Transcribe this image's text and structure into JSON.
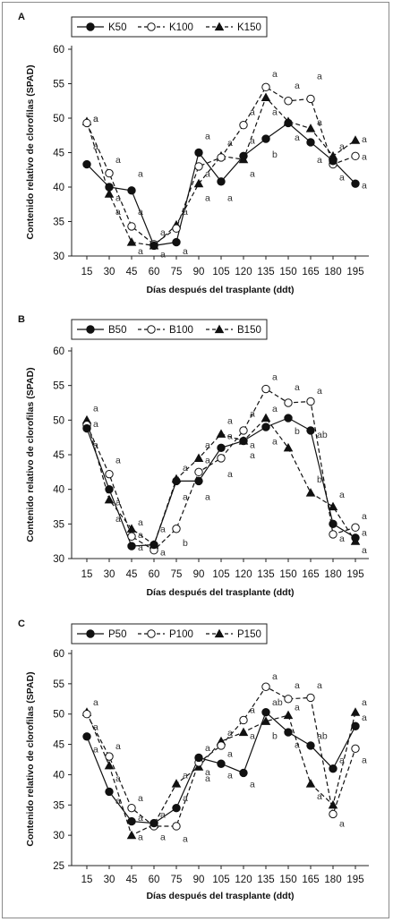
{
  "charts": [
    {
      "panel": "A",
      "type": "line",
      "x": [
        15,
        30,
        45,
        60,
        75,
        90,
        105,
        120,
        135,
        150,
        165,
        180,
        195
      ],
      "ylim": [
        30,
        60
      ],
      "yticks": [
        30,
        35,
        40,
        45,
        50,
        55,
        60
      ],
      "xlabel": "Días después del trasplante (ddt)",
      "ylabel": "Contenido relativo de clorofilas (SPAD)",
      "series": [
        {
          "name": "K50",
          "marker": "circle",
          "dash": "solid",
          "values": [
            43.3,
            40.0,
            39.5,
            31.5,
            32.0,
            45.0,
            40.8,
            44.5,
            47.0,
            49.3,
            46.5,
            43.8,
            40.5
          ]
        },
        {
          "name": "K100",
          "marker": "circle-open",
          "dash": "dashed",
          "values": [
            49.3,
            42.0,
            34.3,
            31.7,
            34.0,
            43.0,
            44.3,
            49.0,
            54.5,
            52.5,
            52.8,
            43.3,
            44.5
          ]
        },
        {
          "name": "K150",
          "marker": "triangle",
          "dash": "dashed",
          "values": [
            49.5,
            39.0,
            32.0,
            31.5,
            34.5,
            40.5,
            44.5,
            44.0,
            53.0,
            49.5,
            48.5,
            44.5,
            46.8
          ]
        }
      ],
      "annotations": [
        {
          "x": 15,
          "y": 50.0,
          "text": "a"
        },
        {
          "x": 15,
          "y": 50.0,
          "text": "a"
        },
        {
          "x": 15,
          "y": 46.0,
          "text": "a"
        },
        {
          "x": 30,
          "y": 44.0,
          "text": "a"
        },
        {
          "x": 30,
          "y": 38.5,
          "text": "a"
        },
        {
          "x": 30,
          "y": 36.5,
          "text": "a"
        },
        {
          "x": 45,
          "y": 42.0,
          "text": "a"
        },
        {
          "x": 45,
          "y": 36.5,
          "text": "a"
        },
        {
          "x": 45,
          "y": 30.8,
          "text": "a"
        },
        {
          "x": 60,
          "y": 33.5,
          "text": "a"
        },
        {
          "x": 60,
          "y": 30.3,
          "text": "a"
        },
        {
          "x": 75,
          "y": 36.5,
          "text": "a"
        },
        {
          "x": 75,
          "y": 30.8,
          "text": "a"
        },
        {
          "x": 90,
          "y": 47.5,
          "text": "a"
        },
        {
          "x": 90,
          "y": 42.0,
          "text": "a"
        },
        {
          "x": 90,
          "y": 38.5,
          "text": "a"
        },
        {
          "x": 105,
          "y": 46.5,
          "text": "a"
        },
        {
          "x": 105,
          "y": 38.5,
          "text": "a"
        },
        {
          "x": 120,
          "y": 51.0,
          "text": "a"
        },
        {
          "x": 120,
          "y": 46.8,
          "text": "a"
        },
        {
          "x": 120,
          "y": 42.0,
          "text": "a"
        },
        {
          "x": 135,
          "y": 56.5,
          "text": "a"
        },
        {
          "x": 135,
          "y": 51.0,
          "text": "a"
        },
        {
          "x": 135,
          "y": 44.8,
          "text": "b"
        },
        {
          "x": 150,
          "y": 54.8,
          "text": "a"
        },
        {
          "x": 150,
          "y": 47.3,
          "text": "a"
        },
        {
          "x": 165,
          "y": 56.2,
          "text": "a"
        },
        {
          "x": 165,
          "y": 49.5,
          "text": "a"
        },
        {
          "x": 165,
          "y": 44.0,
          "text": "a"
        },
        {
          "x": 180,
          "y": 46.0,
          "text": "a"
        },
        {
          "x": 180,
          "y": 41.5,
          "text": "a"
        },
        {
          "x": 195,
          "y": 47.0,
          "text": "a"
        },
        {
          "x": 195,
          "y": 44.5,
          "text": "a"
        },
        {
          "x": 195,
          "y": 40.3,
          "text": "a"
        }
      ]
    },
    {
      "panel": "B",
      "type": "line",
      "x": [
        15,
        30,
        45,
        60,
        75,
        90,
        105,
        120,
        135,
        150,
        165,
        180,
        195
      ],
      "ylim": [
        30,
        60
      ],
      "yticks": [
        30,
        35,
        40,
        45,
        50,
        55,
        60
      ],
      "xlabel": "Días después del trasplante (ddt)",
      "ylabel": "Contenido relativo de clorofilas (SPAD)",
      "series": [
        {
          "name": "B50",
          "marker": "circle",
          "dash": "solid",
          "values": [
            48.8,
            40.0,
            31.8,
            32.0,
            41.2,
            41.2,
            46.0,
            47.0,
            49.0,
            50.3,
            48.5,
            35.0,
            33.0
          ]
        },
        {
          "name": "B100",
          "marker": "circle-open",
          "dash": "dashed",
          "values": [
            49.3,
            42.2,
            33.2,
            31.2,
            34.3,
            42.5,
            44.5,
            48.5,
            54.5,
            52.5,
            52.7,
            33.5,
            34.5
          ]
        },
        {
          "name": "B150",
          "marker": "triangle",
          "dash": "dashed",
          "values": [
            50.0,
            38.5,
            34.3,
            32.0,
            41.5,
            44.5,
            48.0,
            47.0,
            50.3,
            46.0,
            39.5,
            37.5,
            32.5
          ]
        }
      ],
      "annotations": [
        {
          "x": 15,
          "y": 51.8,
          "text": "a"
        },
        {
          "x": 15,
          "y": 49.5,
          "text": "a"
        },
        {
          "x": 15,
          "y": 46.5,
          "text": "a"
        },
        {
          "x": 30,
          "y": 44.3,
          "text": "a"
        },
        {
          "x": 30,
          "y": 38.2,
          "text": "a"
        },
        {
          "x": 30,
          "y": 35.8,
          "text": "a"
        },
        {
          "x": 45,
          "y": 35.3,
          "text": "a"
        },
        {
          "x": 45,
          "y": 33.5,
          "text": "a"
        },
        {
          "x": 45,
          "y": 31.7,
          "text": "a"
        },
        {
          "x": 60,
          "y": 34.3,
          "text": "a"
        },
        {
          "x": 60,
          "y": 31.0,
          "text": "a"
        },
        {
          "x": 75,
          "y": 43.2,
          "text": "a"
        },
        {
          "x": 75,
          "y": 39.0,
          "text": "a"
        },
        {
          "x": 75,
          "y": 32.3,
          "text": "b"
        },
        {
          "x": 90,
          "y": 46.5,
          "text": "a"
        },
        {
          "x": 90,
          "y": 44.3,
          "text": "a"
        },
        {
          "x": 90,
          "y": 39.0,
          "text": "a"
        },
        {
          "x": 105,
          "y": 50.0,
          "text": "a"
        },
        {
          "x": 105,
          "y": 47.8,
          "text": "a"
        },
        {
          "x": 105,
          "y": 42.3,
          "text": "a"
        },
        {
          "x": 120,
          "y": 51.0,
          "text": "a"
        },
        {
          "x": 120,
          "y": 46.5,
          "text": "a"
        },
        {
          "x": 120,
          "y": 45.0,
          "text": "a"
        },
        {
          "x": 135,
          "y": 56.3,
          "text": "a"
        },
        {
          "x": 135,
          "y": 51.7,
          "text": "a"
        },
        {
          "x": 135,
          "y": 47.0,
          "text": "a"
        },
        {
          "x": 150,
          "y": 54.8,
          "text": "a"
        },
        {
          "x": 150,
          "y": 48.5,
          "text": "b"
        },
        {
          "x": 165,
          "y": 54.3,
          "text": "a"
        },
        {
          "x": 165,
          "y": 48.0,
          "text": "ab"
        },
        {
          "x": 165,
          "y": 41.5,
          "text": "b"
        },
        {
          "x": 180,
          "y": 39.3,
          "text": "a"
        },
        {
          "x": 180,
          "y": 33.0,
          "text": "a"
        },
        {
          "x": 195,
          "y": 36.2,
          "text": "a"
        },
        {
          "x": 195,
          "y": 33.8,
          "text": "a"
        },
        {
          "x": 195,
          "y": 31.3,
          "text": "a"
        }
      ]
    },
    {
      "panel": "C",
      "type": "line",
      "x": [
        15,
        30,
        45,
        60,
        75,
        90,
        105,
        120,
        135,
        150,
        165,
        180,
        195
      ],
      "ylim": [
        25,
        60
      ],
      "yticks": [
        25,
        30,
        35,
        40,
        45,
        50,
        55,
        60
      ],
      "xlabel": "Días después del trasplante (ddt)",
      "ylabel": "Contenido relativo de clorofilas (SPAD)",
      "series": [
        {
          "name": "P50",
          "marker": "circle",
          "dash": "solid",
          "values": [
            46.3,
            37.2,
            32.3,
            32.0,
            34.5,
            42.8,
            41.8,
            40.3,
            50.3,
            47.0,
            44.8,
            41.0,
            48.0
          ]
        },
        {
          "name": "P100",
          "marker": "circle-open",
          "dash": "dashed",
          "values": [
            50.0,
            43.0,
            34.5,
            31.5,
            31.5,
            42.0,
            44.8,
            49.0,
            54.5,
            52.5,
            52.7,
            33.5,
            44.3
          ]
        },
        {
          "name": "P150",
          "marker": "triangle",
          "dash": "dashed",
          "values": [
            50.3,
            41.5,
            30.0,
            31.8,
            38.5,
            41.3,
            45.5,
            47.0,
            48.8,
            49.8,
            38.5,
            35.0,
            50.3
          ]
        }
      ],
      "annotations": [
        {
          "x": 15,
          "y": 52.0,
          "text": "a"
        },
        {
          "x": 15,
          "y": 48.0,
          "text": "a"
        },
        {
          "x": 15,
          "y": 44.3,
          "text": "a"
        },
        {
          "x": 30,
          "y": 44.8,
          "text": "a"
        },
        {
          "x": 30,
          "y": 39.5,
          "text": "a"
        },
        {
          "x": 30,
          "y": 35.8,
          "text": "a"
        },
        {
          "x": 45,
          "y": 36.2,
          "text": "a"
        },
        {
          "x": 45,
          "y": 33.0,
          "text": "a"
        },
        {
          "x": 45,
          "y": 29.8,
          "text": "a"
        },
        {
          "x": 60,
          "y": 33.5,
          "text": "a"
        },
        {
          "x": 60,
          "y": 29.8,
          "text": "a"
        },
        {
          "x": 75,
          "y": 40.0,
          "text": "a"
        },
        {
          "x": 75,
          "y": 36.2,
          "text": "a"
        },
        {
          "x": 75,
          "y": 29.5,
          "text": "a"
        },
        {
          "x": 90,
          "y": 44.5,
          "text": "a"
        },
        {
          "x": 90,
          "y": 40.5,
          "text": "a"
        },
        {
          "x": 90,
          "y": 39.5,
          "text": "a"
        },
        {
          "x": 105,
          "y": 47.0,
          "text": "a"
        },
        {
          "x": 105,
          "y": 43.5,
          "text": "a"
        },
        {
          "x": 105,
          "y": 40.0,
          "text": "a"
        },
        {
          "x": 120,
          "y": 50.8,
          "text": "a"
        },
        {
          "x": 120,
          "y": 46.5,
          "text": "a"
        },
        {
          "x": 120,
          "y": 38.5,
          "text": "a"
        },
        {
          "x": 135,
          "y": 56.3,
          "text": "a"
        },
        {
          "x": 135,
          "y": 52.0,
          "text": "ab"
        },
        {
          "x": 135,
          "y": 46.5,
          "text": "b"
        },
        {
          "x": 150,
          "y": 54.8,
          "text": "a"
        },
        {
          "x": 150,
          "y": 51.2,
          "text": "a"
        },
        {
          "x": 150,
          "y": 45.0,
          "text": "a"
        },
        {
          "x": 165,
          "y": 54.8,
          "text": "a"
        },
        {
          "x": 165,
          "y": 46.5,
          "text": "ab"
        },
        {
          "x": 165,
          "y": 36.5,
          "text": "a"
        },
        {
          "x": 180,
          "y": 42.5,
          "text": "a"
        },
        {
          "x": 180,
          "y": 32.0,
          "text": "a"
        },
        {
          "x": 195,
          "y": 52.0,
          "text": "a"
        },
        {
          "x": 195,
          "y": 49.5,
          "text": "a"
        },
        {
          "x": 195,
          "y": 42.5,
          "text": "a"
        }
      ]
    }
  ]
}
